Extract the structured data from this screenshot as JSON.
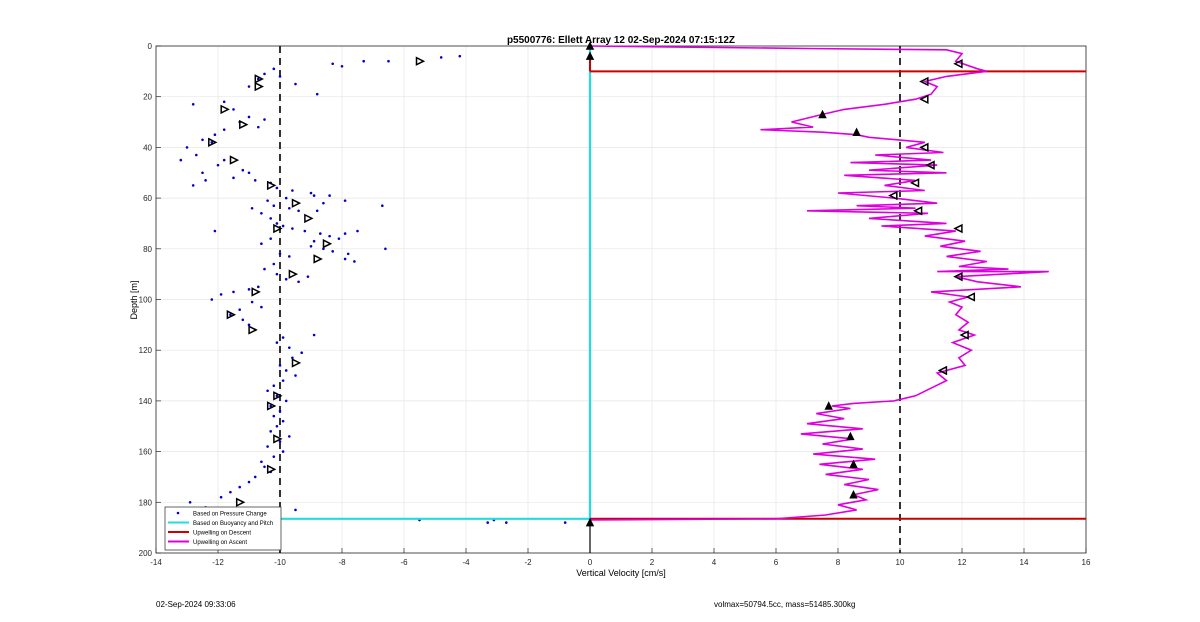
{
  "footer": {
    "timestamp": "02-Sep-2024 09:33:06",
    "volmax_mass": "volmax=50794.5cc, mass=51485.300kg"
  },
  "chart_data": {
    "type": "scatter",
    "title": "p5500776: Ellett Array 12 02-Sep-2024 07:15:12Z",
    "xlabel": "Vertical Velocity [cm/s]",
    "ylabel": "Depth [m]",
    "xlim": [
      -14,
      16
    ],
    "ylim": [
      0,
      200
    ],
    "y_reversed": true,
    "xticks": [
      "-14",
      "-12",
      "-10",
      "-8",
      "-6",
      "-4",
      "-2",
      "0",
      "2",
      "4",
      "6",
      "8",
      "10",
      "12",
      "14",
      "16"
    ],
    "yticks": [
      "0",
      "20",
      "40",
      "60",
      "80",
      "100",
      "120",
      "140",
      "160",
      "180",
      "200"
    ],
    "grid": true,
    "reference_lines_x": [
      -10,
      10
    ],
    "legend_position": "bottom-left",
    "legend": [
      {
        "label": "Based on Pressure Change",
        "color": "#0000cc",
        "style": "dot"
      },
      {
        "label": "Based on Buoyancy and Pitch",
        "color": "#22dddd",
        "style": "line"
      },
      {
        "label": "Upwelling on Descent",
        "color": "#cc0000",
        "style": "line"
      },
      {
        "label": "Upwelling on Ascent",
        "color": "#dd00dd",
        "style": "line"
      }
    ],
    "series": [
      {
        "name": "Based on Pressure Change",
        "color": "#0000cc",
        "points": [
          [
            -4.2,
            4
          ],
          [
            -4.8,
            4.5
          ],
          [
            -6.5,
            6
          ],
          [
            -8.3,
            7
          ],
          [
            -8.0,
            8
          ],
          [
            -7.3,
            6
          ],
          [
            -10.2,
            9
          ],
          [
            -10.5,
            11
          ],
          [
            -10.7,
            13
          ],
          [
            -11,
            16
          ],
          [
            -10,
            12
          ],
          [
            -9.5,
            15
          ],
          [
            -8.8,
            19
          ],
          [
            -11.8,
            22
          ],
          [
            -12.8,
            23
          ],
          [
            -11.5,
            25
          ],
          [
            -11,
            28
          ],
          [
            -10.5,
            29
          ],
          [
            -10.7,
            32
          ],
          [
            -11.3,
            30
          ],
          [
            -11.8,
            33
          ],
          [
            -12.1,
            35
          ],
          [
            -12.2,
            38
          ],
          [
            -12.5,
            37
          ],
          [
            -13,
            40
          ],
          [
            -12.7,
            43
          ],
          [
            -13.2,
            45
          ],
          [
            -12,
            47
          ],
          [
            -11.8,
            45
          ],
          [
            -12.5,
            50
          ],
          [
            -11.2,
            49
          ],
          [
            -11.5,
            52
          ],
          [
            -12.4,
            53
          ],
          [
            -12.8,
            55
          ],
          [
            -11,
            50
          ],
          [
            -10.8,
            53
          ],
          [
            -10.3,
            54
          ],
          [
            -10.1,
            56
          ],
          [
            -9.6,
            57
          ],
          [
            -9,
            58
          ],
          [
            -8.9,
            59
          ],
          [
            -8.4,
            59
          ],
          [
            -9.8,
            60
          ],
          [
            -10.4,
            61
          ],
          [
            -10.2,
            63
          ],
          [
            -9.7,
            64
          ],
          [
            -9.4,
            65
          ],
          [
            -8.8,
            65
          ],
          [
            -8.6,
            62
          ],
          [
            -7.9,
            61
          ],
          [
            -6.7,
            63
          ],
          [
            -10.9,
            64
          ],
          [
            -10.6,
            66
          ],
          [
            -10.3,
            68
          ],
          [
            -10.1,
            70
          ],
          [
            -9.9,
            71
          ],
          [
            -9.6,
            72
          ],
          [
            -9.2,
            73
          ],
          [
            -8.7,
            74
          ],
          [
            -8.4,
            75
          ],
          [
            -8.1,
            76
          ],
          [
            -7.9,
            74
          ],
          [
            -7.5,
            73
          ],
          [
            -8.9,
            77
          ],
          [
            -9,
            79
          ],
          [
            -8.6,
            80
          ],
          [
            -8.3,
            81
          ],
          [
            -7.8,
            82
          ],
          [
            -7.9,
            84
          ],
          [
            -7.6,
            85
          ],
          [
            -6.6,
            80
          ],
          [
            -12.1,
            73
          ],
          [
            -10.3,
            76
          ],
          [
            -10.6,
            78
          ],
          [
            -10.0,
            82
          ],
          [
            -9.7,
            83
          ],
          [
            -10.2,
            86
          ],
          [
            -10.5,
            88
          ],
          [
            -10.1,
            90
          ],
          [
            -9.8,
            92
          ],
          [
            -9.4,
            93
          ],
          [
            -9.1,
            91
          ],
          [
            -10.7,
            95
          ],
          [
            -11.0,
            96
          ],
          [
            -11.5,
            97
          ],
          [
            -11.9,
            98
          ],
          [
            -12.2,
            100
          ],
          [
            -10.9,
            101
          ],
          [
            -10.6,
            103
          ],
          [
            -11.3,
            104
          ],
          [
            -11.6,
            106
          ],
          [
            -11.2,
            108
          ],
          [
            -11.0,
            110
          ],
          [
            -10.8,
            112
          ],
          [
            -9.9,
            115
          ],
          [
            -10.1,
            117
          ],
          [
            -9.7,
            119
          ],
          [
            -9.3,
            121
          ],
          [
            -9.6,
            123
          ],
          [
            -8.9,
            114
          ],
          [
            -10.0,
            126
          ],
          [
            -9.8,
            128
          ],
          [
            -9.5,
            130
          ],
          [
            -9.9,
            132
          ],
          [
            -10.2,
            134
          ],
          [
            -10.4,
            136
          ],
          [
            -10.1,
            138
          ],
          [
            -9.8,
            140
          ],
          [
            -10.3,
            142
          ],
          [
            -10.0,
            144
          ],
          [
            -10.2,
            146
          ],
          [
            -9.9,
            148
          ],
          [
            -10.1,
            150
          ],
          [
            -10.3,
            152
          ],
          [
            -9.7,
            154
          ],
          [
            -10.0,
            156
          ],
          [
            -10.4,
            158
          ],
          [
            -9.9,
            160
          ],
          [
            -10.2,
            162
          ],
          [
            -10.6,
            164
          ],
          [
            -10.5,
            166
          ],
          [
            -10.3,
            168
          ],
          [
            -10.8,
            170
          ],
          [
            -11.0,
            172
          ],
          [
            -11.3,
            174
          ],
          [
            -11.6,
            176
          ],
          [
            -11.9,
            178
          ],
          [
            -12.9,
            180
          ],
          [
            -12.4,
            182
          ],
          [
            -9.5,
            183
          ],
          [
            -5.5,
            187
          ],
          [
            -3.1,
            187
          ],
          [
            -2.7,
            188
          ],
          [
            -3.3,
            188
          ],
          [
            -0.8,
            188
          ]
        ]
      },
      {
        "name": "Based on Buoyancy and Pitch",
        "color": "#22dddd",
        "points": [
          [
            0,
            0
          ],
          [
            0,
            186.5
          ],
          [
            -13.6,
            186.5
          ]
        ]
      },
      {
        "name": "Upwelling on Descent",
        "color": "#cc0000",
        "points": [
          [
            0,
            3
          ],
          [
            0,
            10
          ],
          [
            16,
            10
          ],
          [
            0,
            186.5
          ],
          [
            16,
            186.5
          ]
        ]
      },
      {
        "name": "Upwelling on Ascent",
        "color": "#dd00dd",
        "points": [
          [
            0,
            0
          ],
          [
            7,
            1
          ],
          [
            11.5,
            1.5
          ],
          [
            12,
            3
          ],
          [
            11.8,
            6
          ],
          [
            12.5,
            9
          ],
          [
            12.8,
            10
          ],
          [
            11.5,
            12
          ],
          [
            10.8,
            14
          ],
          [
            11.2,
            16
          ],
          [
            11.0,
            19
          ],
          [
            10.5,
            21
          ],
          [
            9.5,
            23
          ],
          [
            8.2,
            25
          ],
          [
            7.5,
            27
          ],
          [
            6.5,
            30
          ],
          [
            7.2,
            32
          ],
          [
            5.5,
            33
          ],
          [
            7.5,
            34
          ],
          [
            8.6,
            35
          ],
          [
            9.0,
            36
          ],
          [
            10.8,
            38
          ],
          [
            10.2,
            40
          ],
          [
            11.4,
            42
          ],
          [
            9.2,
            43
          ],
          [
            11.0,
            45
          ],
          [
            8.4,
            46
          ],
          [
            11.2,
            47
          ],
          [
            9.0,
            49
          ],
          [
            11.5,
            50
          ],
          [
            8.2,
            51
          ],
          [
            10.5,
            53
          ],
          [
            9.5,
            55
          ],
          [
            10.8,
            57
          ],
          [
            8.0,
            58
          ],
          [
            9.8,
            60
          ],
          [
            11.2,
            62
          ],
          [
            8.6,
            63
          ],
          [
            10.5,
            64
          ],
          [
            7.0,
            65
          ],
          [
            10.9,
            66
          ],
          [
            9.0,
            68
          ],
          [
            11.5,
            70
          ],
          [
            9.4,
            71
          ],
          [
            11.8,
            73
          ],
          [
            10.8,
            75
          ],
          [
            12.1,
            77
          ],
          [
            11.3,
            79
          ],
          [
            12.6,
            81
          ],
          [
            11.5,
            83
          ],
          [
            12.8,
            85
          ],
          [
            11.9,
            87
          ],
          [
            13.5,
            88
          ],
          [
            11.2,
            89
          ],
          [
            14.8,
            89
          ],
          [
            11.8,
            91
          ],
          [
            12.5,
            93
          ],
          [
            13.9,
            95
          ],
          [
            11.0,
            97
          ],
          [
            12.2,
            99
          ],
          [
            11.6,
            101
          ],
          [
            12.0,
            103
          ],
          [
            11.8,
            106
          ],
          [
            12.2,
            109
          ],
          [
            11.9,
            112
          ],
          [
            12.4,
            114
          ],
          [
            11.7,
            117
          ],
          [
            12.3,
            120
          ],
          [
            11.9,
            123
          ],
          [
            12.1,
            126
          ],
          [
            11.2,
            129
          ],
          [
            11.5,
            132
          ],
          [
            11.0,
            135
          ],
          [
            10.5,
            138
          ],
          [
            9.8,
            140
          ],
          [
            8.5,
            141
          ],
          [
            7.8,
            142
          ],
          [
            8.4,
            143
          ],
          [
            7.3,
            145
          ],
          [
            8.2,
            147
          ],
          [
            7.0,
            149
          ],
          [
            8.8,
            151
          ],
          [
            6.8,
            153
          ],
          [
            8.5,
            155
          ],
          [
            7.5,
            157
          ],
          [
            8.8,
            159
          ],
          [
            7.2,
            161
          ],
          [
            9.2,
            163
          ],
          [
            7.4,
            165
          ],
          [
            8.8,
            167
          ],
          [
            7.6,
            169
          ],
          [
            9.0,
            171
          ],
          [
            8.2,
            173
          ],
          [
            9.3,
            175
          ],
          [
            8.5,
            177
          ],
          [
            8.9,
            179
          ],
          [
            8.0,
            181
          ],
          [
            8.6,
            183
          ],
          [
            7.6,
            185
          ],
          [
            6.0,
            186.5
          ],
          [
            0,
            187
          ],
          [
            0,
            189
          ]
        ]
      }
    ],
    "markers": [
      {
        "shape": "triangle-right",
        "points": [
          [
            -5.5,
            6
          ],
          [
            -10.7,
            13
          ],
          [
            -10.7,
            16
          ],
          [
            -11.8,
            25
          ],
          [
            -11.2,
            31
          ],
          [
            -12.2,
            38
          ],
          [
            -11.5,
            45
          ],
          [
            -10.3,
            55
          ],
          [
            -9.5,
            62
          ],
          [
            -9.1,
            68
          ],
          [
            -10.1,
            72
          ],
          [
            -8.5,
            78
          ],
          [
            -8.8,
            84
          ],
          [
            -9.6,
            90
          ],
          [
            -10.8,
            97
          ],
          [
            -11.6,
            106
          ],
          [
            -10.9,
            112
          ],
          [
            -9.5,
            125
          ],
          [
            -10.1,
            138
          ],
          [
            -10.3,
            142
          ],
          [
            -10.1,
            155
          ],
          [
            -10.3,
            167
          ],
          [
            -11.3,
            180
          ],
          [
            -10.7,
            184
          ]
        ]
      },
      {
        "shape": "triangle-left",
        "points": [
          [
            11.9,
            7
          ],
          [
            10.8,
            14
          ],
          [
            10.8,
            21
          ],
          [
            10.8,
            40
          ],
          [
            11.0,
            47
          ],
          [
            10.5,
            54
          ],
          [
            9.8,
            59
          ],
          [
            10.6,
            65
          ],
          [
            11.9,
            72
          ],
          [
            11.9,
            91
          ],
          [
            12.3,
            99
          ],
          [
            12.1,
            114
          ],
          [
            11.4,
            128
          ]
        ]
      },
      {
        "shape": "triangle-up",
        "points": [
          [
            7.5,
            27
          ],
          [
            8.6,
            34
          ],
          [
            7.7,
            142
          ],
          [
            8.4,
            154
          ],
          [
            8.5,
            165
          ],
          [
            8.5,
            177
          ],
          [
            0,
            4
          ],
          [
            0,
            188
          ],
          [
            0,
            0
          ]
        ]
      }
    ]
  }
}
